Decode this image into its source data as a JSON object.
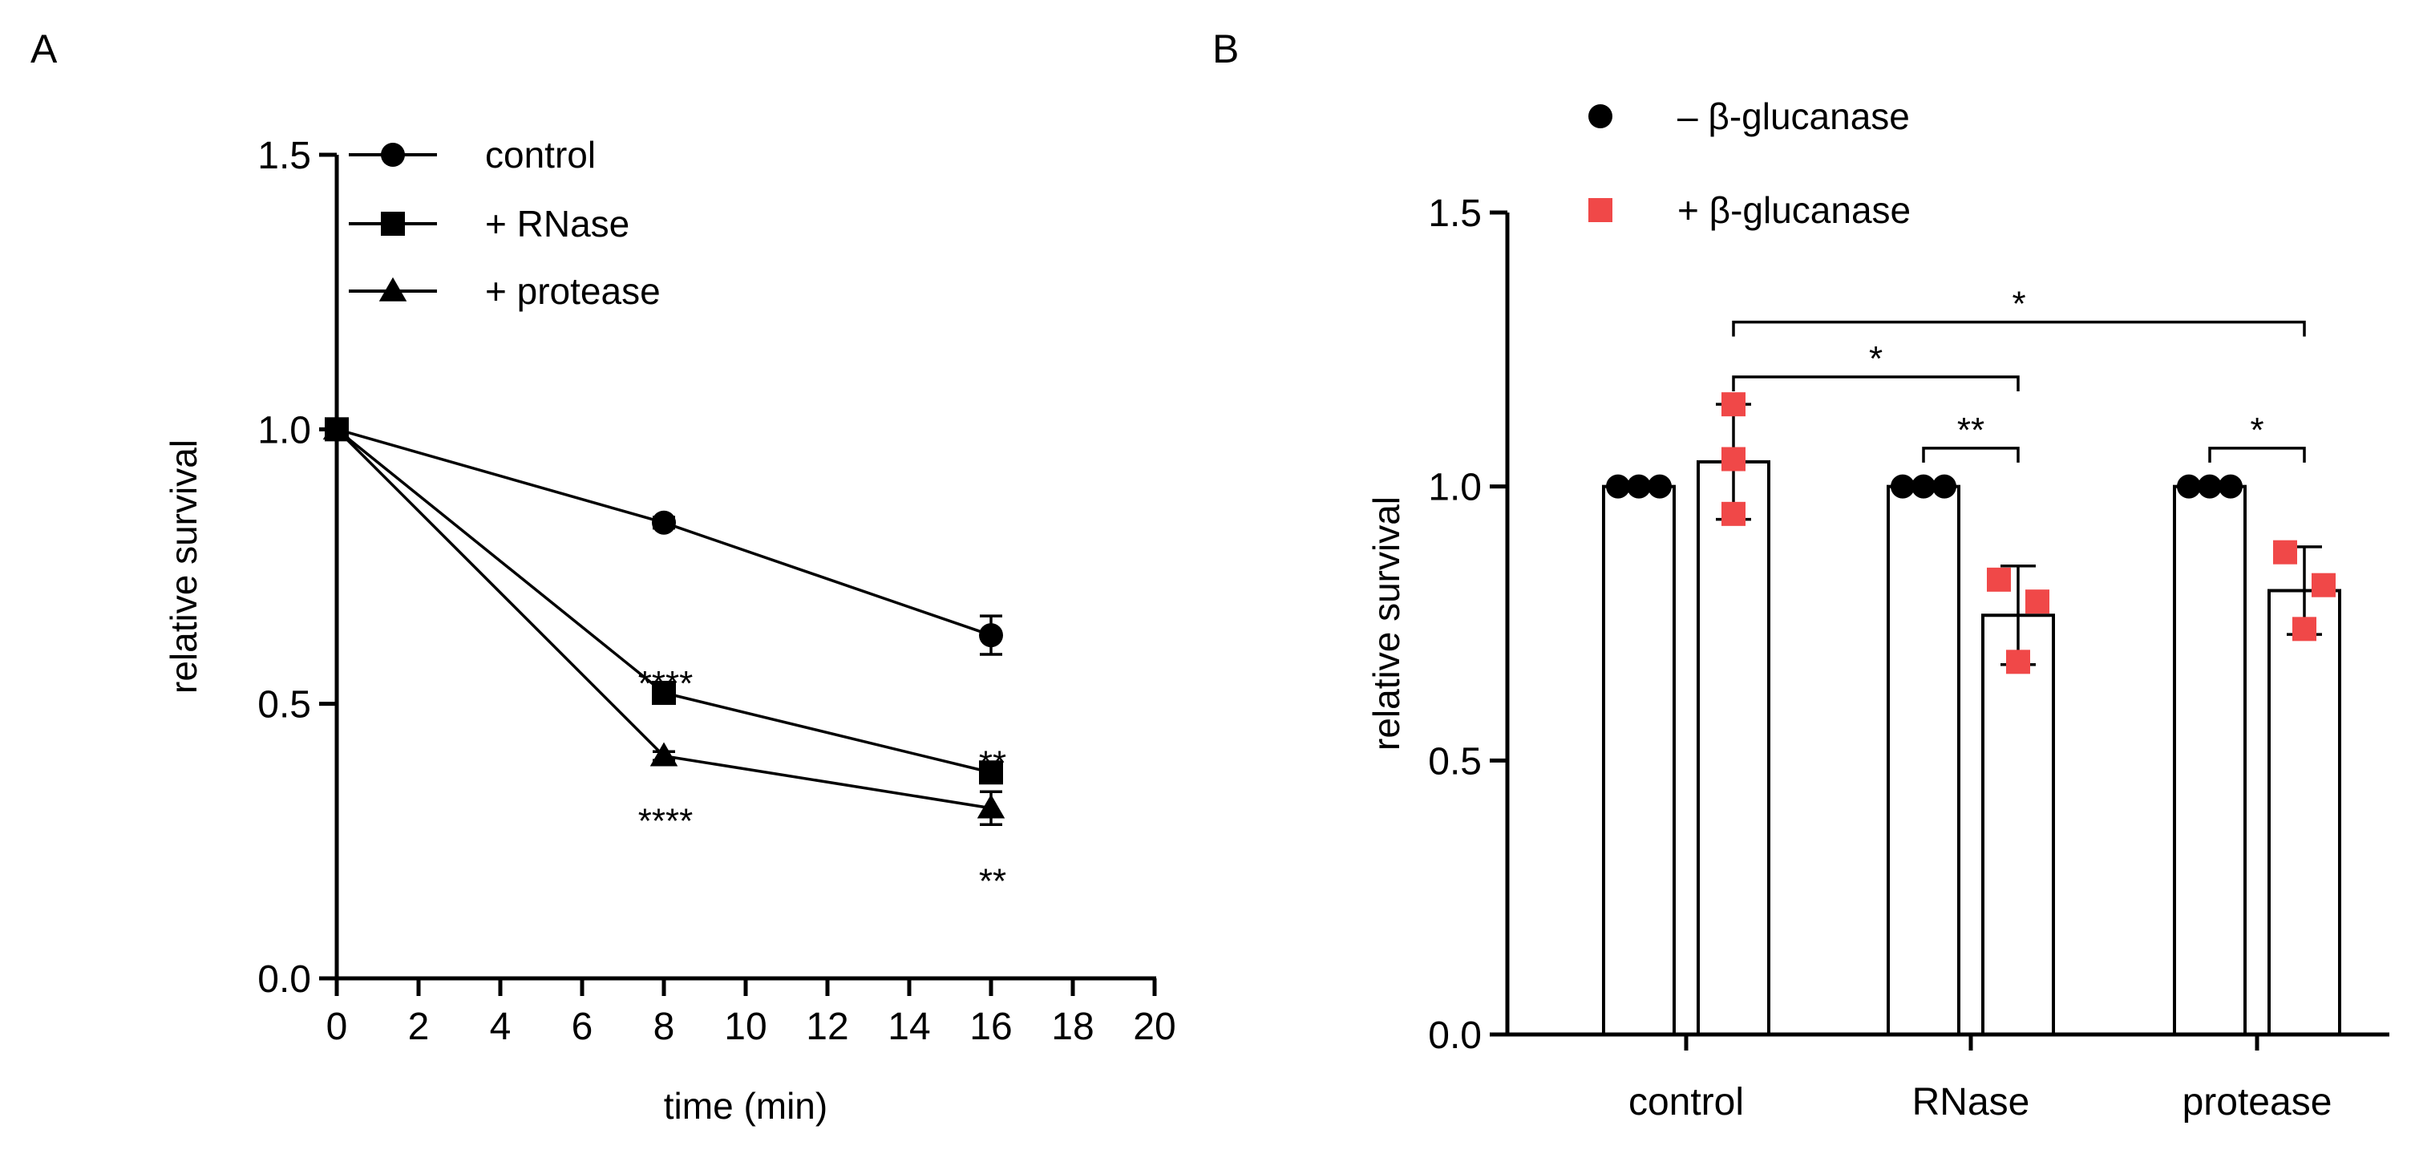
{
  "chart_data": [
    {
      "panel": "A",
      "type": "line",
      "xlabel": "time   (min)",
      "ylabel": "relative survival",
      "xlim": [
        0,
        20
      ],
      "ylim": [
        0,
        1.5
      ],
      "x_ticks": [
        "0",
        "2",
        "4",
        "6",
        "8",
        "10",
        "12",
        "14",
        "16",
        "18",
        "20"
      ],
      "y_ticks": [
        "0.0",
        "0.5",
        "1.0",
        "1.5"
      ],
      "legend_position": "top-left",
      "series": [
        {
          "name": "control",
          "marker": "circle",
          "x": [
            0,
            8,
            16
          ],
          "values": [
            1.0,
            0.83,
            0.625
          ],
          "error": [
            0,
            0.01,
            0.035
          ]
        },
        {
          "name": "+ RNase",
          "marker": "square",
          "x": [
            0,
            8,
            16
          ],
          "values": [
            1.0,
            0.52,
            0.375
          ],
          "error": [
            0,
            0.01,
            0.015
          ]
        },
        {
          "name": "+ protease",
          "marker": "triangle",
          "x": [
            0,
            8,
            16
          ],
          "values": [
            1.0,
            0.405,
            0.31
          ],
          "error": [
            0,
            0.008,
            0.03
          ]
        }
      ],
      "annotations": [
        {
          "text": "****",
          "x": 8,
          "y": 0.565
        },
        {
          "text": "****",
          "x": 8,
          "y": 0.315
        },
        {
          "text": "**",
          "x": 16,
          "y": 0.42
        },
        {
          "text": "**",
          "x": 16,
          "y": 0.205
        }
      ]
    },
    {
      "panel": "B",
      "type": "bar",
      "ylabel": "relative survival",
      "ylim": [
        0,
        1.5
      ],
      "y_ticks": [
        "0.0",
        "0.5",
        "1.0",
        "1.5"
      ],
      "categories": [
        "control",
        "RNase",
        "protease"
      ],
      "legend_position": "top-left",
      "series": [
        {
          "name": "– β-glucanase",
          "color": "#000000",
          "marker": "circle",
          "values": [
            1.0,
            1.0,
            1.0
          ],
          "error": [
            0,
            0,
            0
          ],
          "points": [
            [
              1.0,
              1.0,
              1.0
            ],
            [
              1.0,
              1.0,
              1.0
            ],
            [
              1.0,
              1.0,
              1.0
            ]
          ]
        },
        {
          "name": "+ β-glucanase",
          "color": "#f04848",
          "marker": "square",
          "values": [
            1.045,
            0.765,
            0.81
          ],
          "error": [
            0.105,
            0.09,
            0.08
          ],
          "points": [
            [
              1.15,
              1.05,
              0.95
            ],
            [
              0.83,
              0.79,
              0.68
            ],
            [
              0.88,
              0.82,
              0.74
            ]
          ]
        }
      ],
      "significance": [
        {
          "text": "*",
          "from": [
            0,
            1
          ],
          "to": [
            2,
            1
          ],
          "y": 1.3
        },
        {
          "text": "*",
          "from": [
            0,
            1
          ],
          "to": [
            1,
            1
          ],
          "y": 1.2
        },
        {
          "text": "**",
          "from": [
            1,
            0
          ],
          "to": [
            1,
            1
          ],
          "y": 1.07
        },
        {
          "text": "*",
          "from": [
            2,
            0
          ],
          "to": [
            2,
            1
          ],
          "y": 1.07
        }
      ]
    }
  ],
  "panel_labels": [
    "A",
    "B"
  ]
}
